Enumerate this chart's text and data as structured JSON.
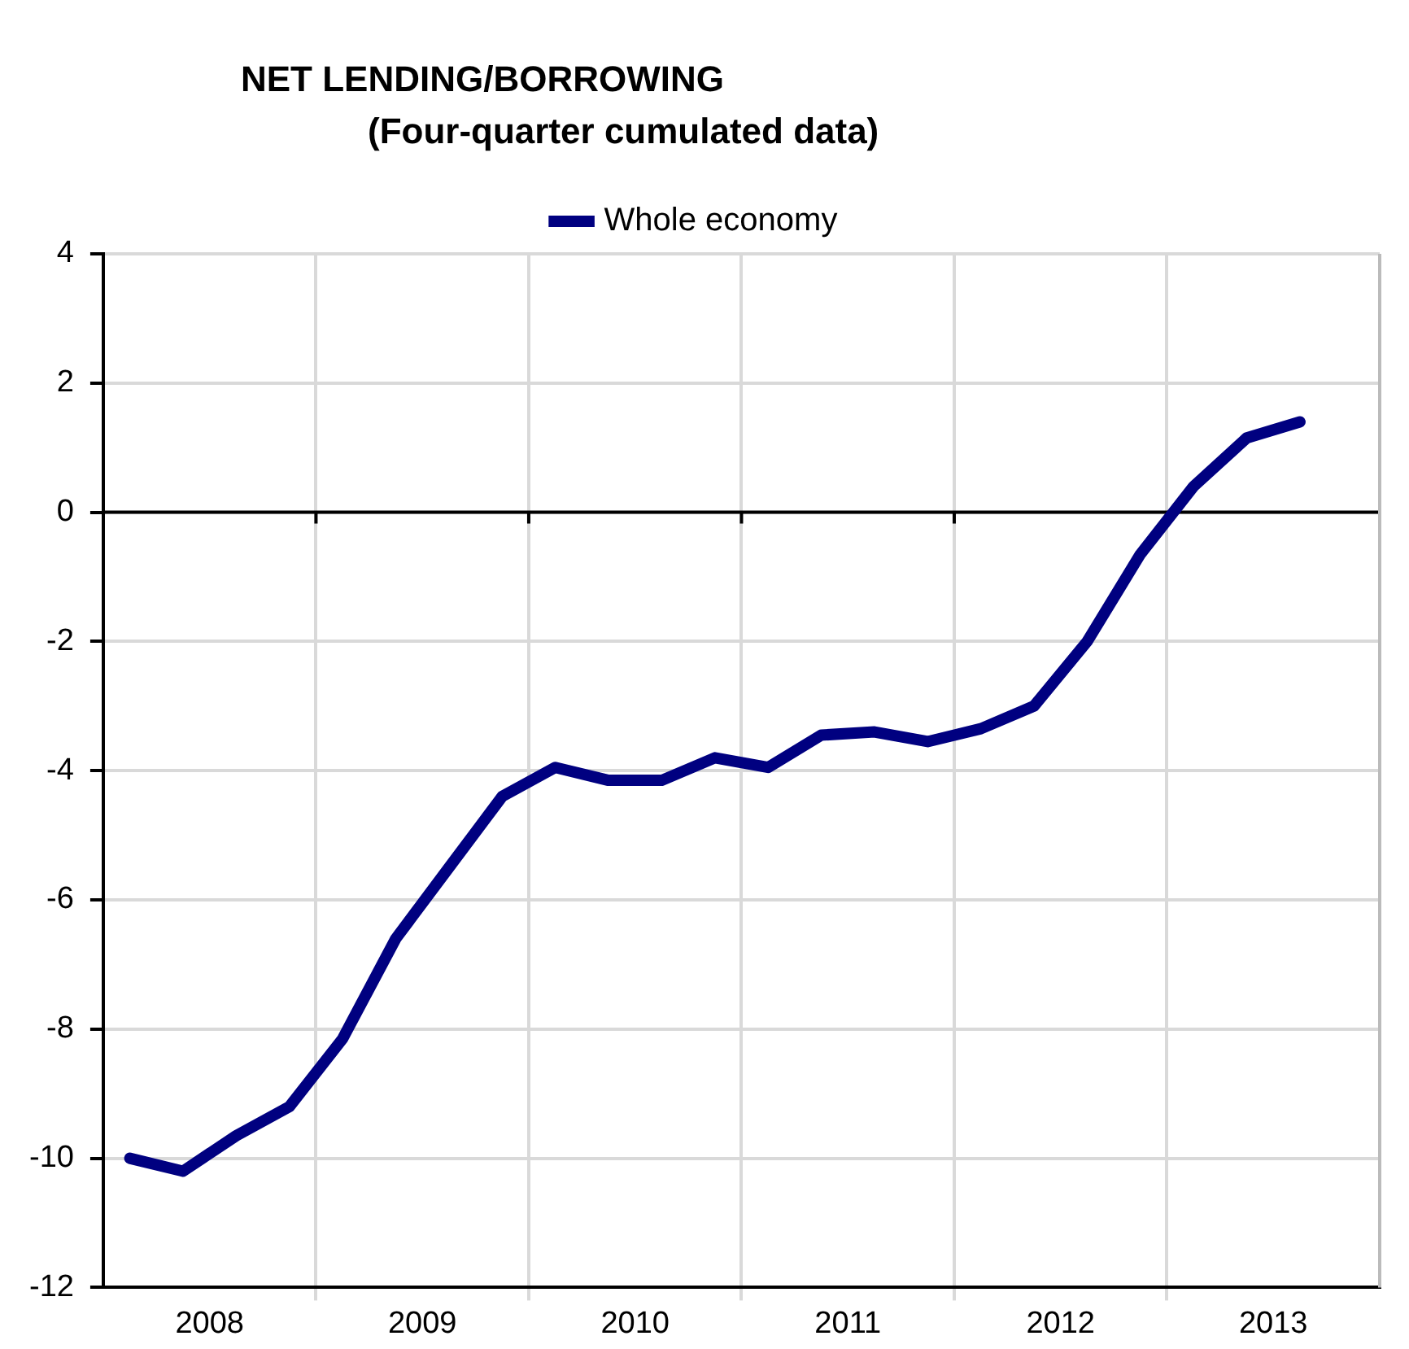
{
  "chart_data": {
    "type": "line",
    "title": "NET LENDING/BORROWING",
    "subtitle": "(Four-quarter cumulated data)",
    "x": [
      2008.125,
      2008.375,
      2008.625,
      2008.875,
      2009.125,
      2009.375,
      2009.625,
      2009.875,
      2010.125,
      2010.375,
      2010.625,
      2010.875,
      2011.125,
      2011.375,
      2011.625,
      2011.875,
      2012.125,
      2012.375,
      2012.625,
      2012.875,
      2013.125,
      2013.375,
      2013.625
    ],
    "series": [
      {
        "name": "Whole economy",
        "color": "#000080",
        "values": [
          -10.0,
          -10.2,
          -9.65,
          -9.2,
          -8.15,
          -6.6,
          -5.5,
          -4.4,
          -3.95,
          -4.15,
          -4.15,
          -3.8,
          -3.95,
          -3.45,
          -3.4,
          -3.55,
          -3.35,
          -3.0,
          -2.0,
          -0.65,
          0.4,
          1.15,
          1.4
        ]
      }
    ],
    "xlim": [
      2008,
      2014
    ],
    "xticks": [
      {
        "value": 2009,
        "label": null
      },
      {
        "value": 2010,
        "label": null
      },
      {
        "value": 2011,
        "label": null
      },
      {
        "value": 2012,
        "label": null
      },
      {
        "value": 2013,
        "label": null
      },
      {
        "value": 2008.5,
        "label": "2008"
      },
      {
        "value": 2009.5,
        "label": "2009"
      },
      {
        "value": 2010.5,
        "label": "2010"
      },
      {
        "value": 2011.5,
        "label": "2011"
      },
      {
        "value": 2012.5,
        "label": "2012"
      },
      {
        "value": 2013.5,
        "label": "2013"
      }
    ],
    "ylim": [
      -12,
      4
    ],
    "yticks": [
      -12,
      -10,
      -8,
      -6,
      -4,
      -2,
      0,
      2,
      4
    ],
    "ref_lines": [
      {
        "axis": "y",
        "value": 0,
        "color": "#000000"
      }
    ],
    "grid": true,
    "legend": "top",
    "marker": "none",
    "line_style": "solid"
  }
}
